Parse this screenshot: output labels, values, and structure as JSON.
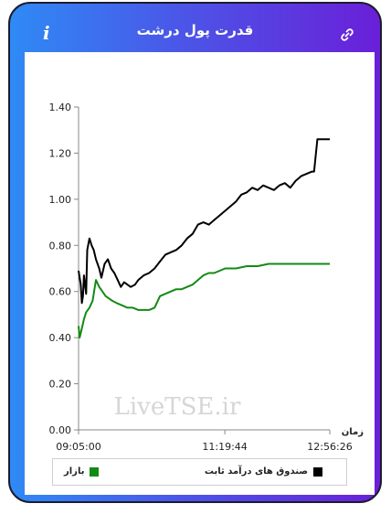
{
  "header": {
    "title": "قدرت پول درشت",
    "info_symbol": "i"
  },
  "colors": {
    "series_fixed_income": "#000000",
    "series_market": "#138a13"
  },
  "chart_data": {
    "type": "line",
    "title": "قدرت پول درشت",
    "xlabel": "زمان",
    "ylabel": "",
    "ylim": [
      0,
      1.4
    ],
    "yticks": [
      "0.00",
      "0.20",
      "0.40",
      "0.60",
      "0.80",
      "1.00",
      "1.20",
      "1.40"
    ],
    "xticks": [
      "09:05:00",
      "11:19:44",
      "12:56:26"
    ],
    "x_time_range": [
      "09:05:00",
      "12:56:26"
    ],
    "grid": false,
    "legend_position": "bottom",
    "watermark": "LiveTSE.ir",
    "series": [
      {
        "name": "صندوق های درآمد ثابت",
        "color": "#000000",
        "x": [
          "09:05:00",
          "09:07:00",
          "09:08:00",
          "09:09:00",
          "09:10:00",
          "09:12:00",
          "09:13:00",
          "09:15:00",
          "09:17:00",
          "09:19:00",
          "09:21:00",
          "09:24:00",
          "09:26:00",
          "09:29:00",
          "09:32:00",
          "09:35:00",
          "09:38:00",
          "09:41:00",
          "09:44:00",
          "09:47:00",
          "09:50:00",
          "09:53:00",
          "09:57:00",
          "10:00:00",
          "10:05:00",
          "10:10:00",
          "10:15:00",
          "10:20:00",
          "10:25:00",
          "10:30:00",
          "10:35:00",
          "10:40:00",
          "10:45:00",
          "10:50:00",
          "10:55:00",
          "11:00:00",
          "11:05:00",
          "11:10:00",
          "11:15:00",
          "11:20:00",
          "11:25:00",
          "11:30:00",
          "11:35:00",
          "11:40:00",
          "11:45:00",
          "11:50:00",
          "11:55:00",
          "12:00:00",
          "12:05:00",
          "12:10:00",
          "12:15:00",
          "12:20:00",
          "12:25:00",
          "12:30:00",
          "12:35:00",
          "12:40:00",
          "12:42:00",
          "12:45:00",
          "12:50:00",
          "12:56:26"
        ],
        "values": [
          0.69,
          0.63,
          0.55,
          0.58,
          0.67,
          0.59,
          0.78,
          0.83,
          0.8,
          0.78,
          0.74,
          0.7,
          0.66,
          0.72,
          0.74,
          0.7,
          0.68,
          0.65,
          0.62,
          0.64,
          0.63,
          0.62,
          0.63,
          0.65,
          0.67,
          0.68,
          0.7,
          0.73,
          0.76,
          0.77,
          0.78,
          0.8,
          0.83,
          0.85,
          0.89,
          0.9,
          0.89,
          0.91,
          0.93,
          0.95,
          0.97,
          0.99,
          1.02,
          1.03,
          1.05,
          1.04,
          1.06,
          1.05,
          1.04,
          1.06,
          1.07,
          1.05,
          1.08,
          1.1,
          1.11,
          1.12,
          1.12,
          1.26,
          1.26,
          1.26
        ]
      },
      {
        "name": "بازار",
        "color": "#138a13",
        "x": [
          "09:05:00",
          "09:06:00",
          "09:08:00",
          "09:10:00",
          "09:12:00",
          "09:15:00",
          "09:18:00",
          "09:21:00",
          "09:24:00",
          "09:27:00",
          "09:30:00",
          "09:33:00",
          "09:36:00",
          "09:40:00",
          "09:45:00",
          "09:50:00",
          "09:55:00",
          "10:00:00",
          "10:05:00",
          "10:10:00",
          "10:15:00",
          "10:20:00",
          "10:25:00",
          "10:30:00",
          "10:35:00",
          "10:40:00",
          "10:45:00",
          "10:50:00",
          "10:55:00",
          "11:00:00",
          "11:05:00",
          "11:10:00",
          "11:15:00",
          "11:20:00",
          "11:25:00",
          "11:30:00",
          "11:40:00",
          "11:50:00",
          "12:00:00",
          "12:10:00",
          "12:20:00",
          "12:30:00",
          "12:40:00",
          "12:50:00",
          "12:56:26"
        ],
        "values": [
          0.45,
          0.4,
          0.44,
          0.48,
          0.51,
          0.53,
          0.56,
          0.65,
          0.62,
          0.6,
          0.58,
          0.57,
          0.56,
          0.55,
          0.54,
          0.53,
          0.53,
          0.52,
          0.52,
          0.52,
          0.53,
          0.58,
          0.59,
          0.6,
          0.61,
          0.61,
          0.62,
          0.63,
          0.65,
          0.67,
          0.68,
          0.68,
          0.69,
          0.7,
          0.7,
          0.7,
          0.71,
          0.71,
          0.72,
          0.72,
          0.72,
          0.72,
          0.72,
          0.72,
          0.72
        ]
      }
    ]
  }
}
